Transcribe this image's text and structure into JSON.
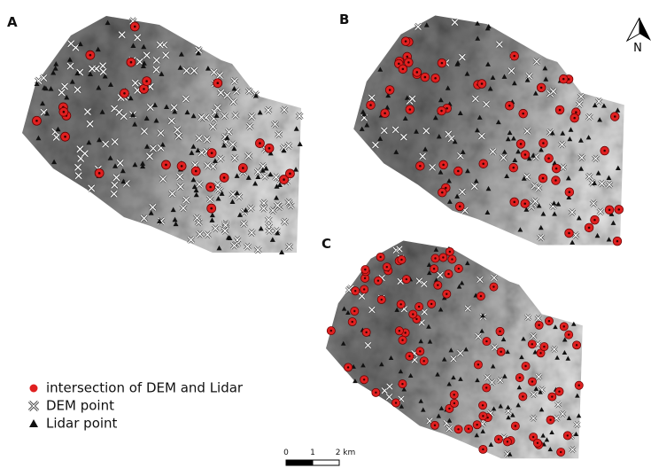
{
  "panels": [
    {
      "label": "A"
    },
    {
      "label": "B"
    },
    {
      "label": "C"
    }
  ],
  "north": "N",
  "legend": [
    {
      "label": "intersection of DEM and Lidar"
    },
    {
      "label": "DEM point"
    },
    {
      "label": "Lidar point"
    }
  ],
  "scale_bar": {
    "labels": [
      "0",
      "1",
      "2 km"
    ]
  }
}
